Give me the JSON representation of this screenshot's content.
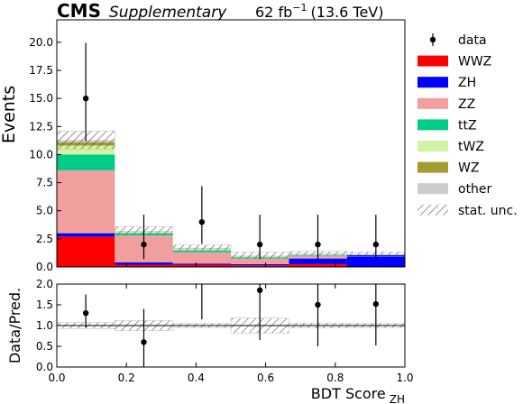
{
  "header": {
    "experiment": "CMS",
    "tag": "Supplementary",
    "lumi_text": "62 fb",
    "lumi_exp": "−1",
    "energy_text": "(13.6 TeV)"
  },
  "chart_data": [
    {
      "type": "bar",
      "subtype": "stacked-histogram",
      "x_edges": [
        0.0,
        0.1667,
        0.3333,
        0.5,
        0.6667,
        0.8333,
        1.0
      ],
      "ylabel": "Events",
      "ylim": [
        0,
        22
      ],
      "y_ticks": [
        "0.0",
        "2.5",
        "5.0",
        "7.5",
        "10.0",
        "12.5",
        "15.0",
        "17.5",
        "20.0"
      ],
      "y_tick_values": [
        0,
        2.5,
        5,
        7.5,
        10,
        12.5,
        15,
        17.5,
        20
      ],
      "series": [
        {
          "name": "WWZ",
          "color": "#ff0000",
          "values": [
            2.7,
            0.2,
            0.2,
            0.15,
            0.25,
            0.0
          ]
        },
        {
          "name": "ZH",
          "color": "#0000ff",
          "values": [
            0.3,
            0.2,
            0.1,
            0.1,
            0.5,
            1.05
          ]
        },
        {
          "name": "ZZ",
          "color": "#f19e9e",
          "values": [
            5.6,
            2.4,
            1.0,
            0.5,
            0.2,
            0.0
          ]
        },
        {
          "name": "ttZ",
          "color": "#00cc88",
          "values": [
            1.4,
            0.2,
            0.2,
            0.1,
            0.1,
            0.0
          ]
        },
        {
          "name": "tWZ",
          "color": "#d1f3a4",
          "values": [
            0.8,
            0.1,
            0.1,
            0.05,
            0.05,
            0.0
          ]
        },
        {
          "name": "WZ",
          "color": "#a59c30",
          "values": [
            0.3,
            0.0,
            0.0,
            0.0,
            0.0,
            0.0
          ]
        },
        {
          "name": "other",
          "color": "#cccccc",
          "values": [
            0.2,
            0.1,
            0.1,
            0.1,
            0.1,
            0.1
          ]
        }
      ],
      "stat_unc": [
        0.8,
        0.4,
        0.25,
        0.3,
        0.2,
        0.2
      ],
      "data": {
        "name": "data",
        "x": [
          0.0833,
          0.25,
          0.4167,
          0.5833,
          0.75,
          0.9167
        ],
        "y": [
          15,
          2,
          4,
          2,
          2,
          2
        ],
        "err_low": [
          3.8,
          1.3,
          1.95,
          1.3,
          1.3,
          1.3
        ],
        "err_high": [
          4.95,
          2.65,
          3.2,
          2.65,
          2.65,
          2.65
        ]
      },
      "legend": {
        "placement": "right",
        "entries": [
          "data",
          "WWZ",
          "ZH",
          "ZZ",
          "ttZ",
          "tWZ",
          "WZ",
          "other",
          "stat. unc."
        ]
      }
    },
    {
      "type": "scatter",
      "subtype": "ratio",
      "ylabel": "Data/Pred.",
      "ylim": [
        0,
        2
      ],
      "y_ticks": [
        "0.0",
        "0.5",
        "1.0",
        "1.5",
        "2.0"
      ],
      "y_tick_values": [
        0,
        0.5,
        1,
        1.5,
        2
      ],
      "x_ticks": [
        "0.0",
        "0.2",
        "0.4",
        "0.6",
        "0.8",
        "1.0"
      ],
      "x_tick_values": [
        0,
        0.2,
        0.4,
        0.6,
        0.8,
        1.0
      ],
      "xlabel": "BDT Score",
      "xlabel_sub": "ZH",
      "x": [
        0.0833,
        0.25,
        0.4167,
        0.5833,
        0.75,
        0.9167
      ],
      "ratio": [
        1.3,
        0.6,
        2.2,
        1.85,
        1.5,
        1.52
      ],
      "err_low": [
        0.35,
        0.6,
        1.05,
        1.2,
        1.0,
        1.0
      ],
      "err_high": [
        0.45,
        0.8,
        1.5,
        2.1,
        1.8,
        1.8
      ],
      "unc_band": [
        0.07,
        0.12,
        0.05,
        0.18,
        0.06,
        0.05
      ]
    }
  ]
}
